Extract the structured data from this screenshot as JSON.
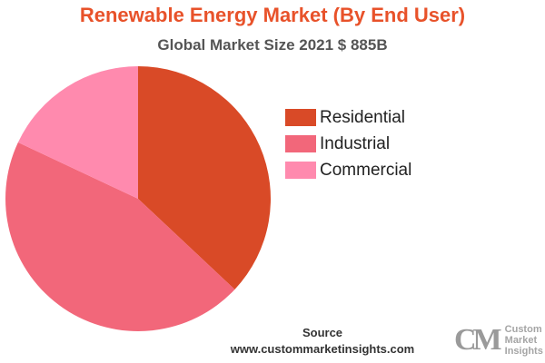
{
  "chart_data": {
    "type": "pie",
    "title": "Renewable Energy Market (By End User)",
    "subtitle": "Global Market Size 2021 $ 885B",
    "slices": [
      {
        "label": "Residential",
        "value": 37,
        "color": "#d94a27"
      },
      {
        "label": "Industrial",
        "value": 45,
        "color": "#f2677a"
      },
      {
        "label": "Commercial",
        "value": 18,
        "color": "#ff8aae"
      }
    ],
    "legend_position": "right"
  },
  "source": {
    "label": "Source",
    "url": "www.custommarketinsights.com"
  },
  "logo": {
    "mark": "CM",
    "lines": [
      "Custom",
      "Market",
      "Insights"
    ]
  }
}
